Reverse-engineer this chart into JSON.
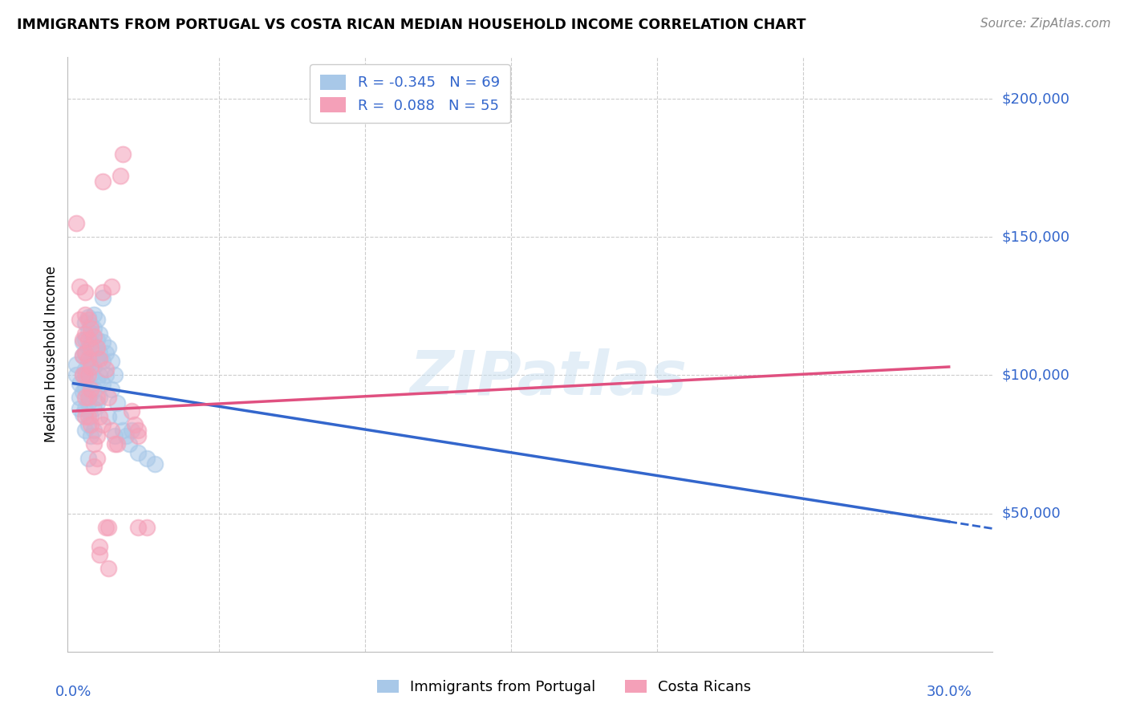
{
  "title": "IMMIGRANTS FROM PORTUGAL VS COSTA RICAN MEDIAN HOUSEHOLD INCOME CORRELATION CHART",
  "source": "Source: ZipAtlas.com",
  "ylabel": "Median Household Income",
  "legend_label1": "Immigrants from Portugal",
  "legend_label2": "Costa Ricans",
  "r1": -0.345,
  "n1": 69,
  "r2": 0.088,
  "n2": 55,
  "color_blue": "#a8c8e8",
  "color_pink": "#f4a0b8",
  "color_blue_line": "#3366cc",
  "color_pink_line": "#e05080",
  "color_blue_text": "#3366cc",
  "xlim": [
    0.0,
    0.3
  ],
  "ylim": [
    0,
    215000
  ],
  "yticks": [
    50000,
    100000,
    150000,
    200000
  ],
  "ytick_labels": [
    "$50,000",
    "$100,000",
    "$150,000",
    "$200,000"
  ],
  "blue_trend": [
    0.0,
    97000,
    0.3,
    47000
  ],
  "blue_dash": [
    0.3,
    47000,
    0.315,
    44500
  ],
  "pink_trend": [
    0.0,
    87000,
    0.3,
    103000
  ],
  "blue_points": [
    [
      0.001,
      104000
    ],
    [
      0.001,
      100000
    ],
    [
      0.002,
      97000
    ],
    [
      0.002,
      92000
    ],
    [
      0.002,
      88000
    ],
    [
      0.003,
      112000
    ],
    [
      0.003,
      107000
    ],
    [
      0.003,
      100000
    ],
    [
      0.003,
      94000
    ],
    [
      0.003,
      86000
    ],
    [
      0.004,
      119000
    ],
    [
      0.004,
      113000
    ],
    [
      0.004,
      108000
    ],
    [
      0.004,
      102000
    ],
    [
      0.004,
      95000
    ],
    [
      0.004,
      88000
    ],
    [
      0.004,
      80000
    ],
    [
      0.005,
      121000
    ],
    [
      0.005,
      116000
    ],
    [
      0.005,
      110000
    ],
    [
      0.005,
      104000
    ],
    [
      0.005,
      97000
    ],
    [
      0.005,
      90000
    ],
    [
      0.005,
      82000
    ],
    [
      0.005,
      70000
    ],
    [
      0.006,
      118000
    ],
    [
      0.006,
      112000
    ],
    [
      0.006,
      106000
    ],
    [
      0.006,
      100000
    ],
    [
      0.006,
      93000
    ],
    [
      0.006,
      85000
    ],
    [
      0.006,
      78000
    ],
    [
      0.007,
      122000
    ],
    [
      0.007,
      117000
    ],
    [
      0.007,
      110000
    ],
    [
      0.007,
      103000
    ],
    [
      0.007,
      95000
    ],
    [
      0.007,
      88000
    ],
    [
      0.007,
      80000
    ],
    [
      0.008,
      120000
    ],
    [
      0.008,
      113000
    ],
    [
      0.008,
      106000
    ],
    [
      0.008,
      98000
    ],
    [
      0.008,
      90000
    ],
    [
      0.009,
      115000
    ],
    [
      0.009,
      108000
    ],
    [
      0.009,
      100000
    ],
    [
      0.009,
      92000
    ],
    [
      0.01,
      128000
    ],
    [
      0.01,
      112000
    ],
    [
      0.01,
      105000
    ],
    [
      0.01,
      97000
    ],
    [
      0.011,
      108000
    ],
    [
      0.011,
      100000
    ],
    [
      0.012,
      110000
    ],
    [
      0.012,
      85000
    ],
    [
      0.013,
      105000
    ],
    [
      0.013,
      95000
    ],
    [
      0.014,
      100000
    ],
    [
      0.014,
      78000
    ],
    [
      0.015,
      90000
    ],
    [
      0.016,
      85000
    ],
    [
      0.017,
      80000
    ],
    [
      0.018,
      78000
    ],
    [
      0.019,
      75000
    ],
    [
      0.02,
      80000
    ],
    [
      0.022,
      72000
    ],
    [
      0.025,
      70000
    ],
    [
      0.028,
      68000
    ]
  ],
  "pink_points": [
    [
      0.001,
      155000
    ],
    [
      0.002,
      132000
    ],
    [
      0.002,
      120000
    ],
    [
      0.003,
      113000
    ],
    [
      0.003,
      107000
    ],
    [
      0.003,
      100000
    ],
    [
      0.004,
      130000
    ],
    [
      0.004,
      122000
    ],
    [
      0.004,
      115000
    ],
    [
      0.004,
      108000
    ],
    [
      0.004,
      100000
    ],
    [
      0.004,
      92000
    ],
    [
      0.004,
      85000
    ],
    [
      0.005,
      120000
    ],
    [
      0.005,
      113000
    ],
    [
      0.005,
      106000
    ],
    [
      0.005,
      100000
    ],
    [
      0.005,
      92000
    ],
    [
      0.005,
      85000
    ],
    [
      0.006,
      117000
    ],
    [
      0.006,
      110000
    ],
    [
      0.006,
      103000
    ],
    [
      0.006,
      95000
    ],
    [
      0.006,
      82000
    ],
    [
      0.007,
      114000
    ],
    [
      0.007,
      75000
    ],
    [
      0.007,
      67000
    ],
    [
      0.008,
      110000
    ],
    [
      0.008,
      92000
    ],
    [
      0.008,
      78000
    ],
    [
      0.008,
      70000
    ],
    [
      0.009,
      106000
    ],
    [
      0.009,
      85000
    ],
    [
      0.009,
      38000
    ],
    [
      0.01,
      130000
    ],
    [
      0.01,
      82000
    ],
    [
      0.01,
      170000
    ],
    [
      0.011,
      102000
    ],
    [
      0.011,
      45000
    ],
    [
      0.012,
      45000
    ],
    [
      0.012,
      92000
    ],
    [
      0.013,
      80000
    ],
    [
      0.013,
      132000
    ],
    [
      0.014,
      75000
    ],
    [
      0.015,
      75000
    ],
    [
      0.016,
      172000
    ],
    [
      0.017,
      180000
    ],
    [
      0.02,
      87000
    ],
    [
      0.021,
      82000
    ],
    [
      0.022,
      45000
    ],
    [
      0.022,
      80000
    ],
    [
      0.025,
      45000
    ],
    [
      0.009,
      35000
    ],
    [
      0.012,
      30000
    ],
    [
      0.022,
      78000
    ]
  ]
}
